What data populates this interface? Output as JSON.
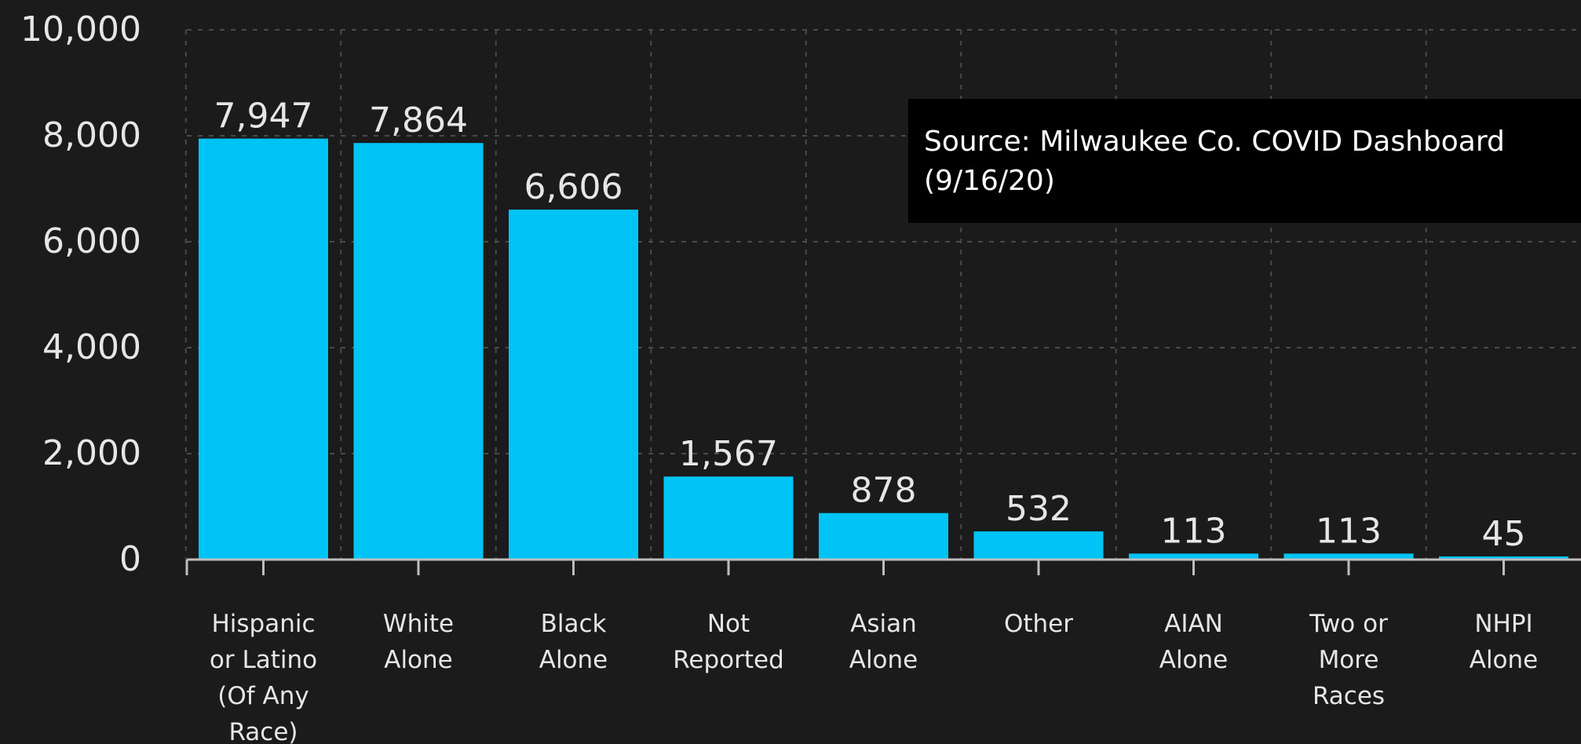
{
  "chart_data": {
    "type": "bar",
    "categories": [
      [
        "Hispanic",
        "or Latino",
        "(Of Any",
        "Race)"
      ],
      [
        "White",
        "Alone"
      ],
      [
        "Black",
        "Alone"
      ],
      [
        "Not",
        "Reported"
      ],
      [
        "Asian",
        "Alone"
      ],
      [
        "Other"
      ],
      [
        "AIAN",
        "Alone"
      ],
      [
        "Two or",
        "More",
        "Races"
      ],
      [
        "NHPI",
        "Alone"
      ]
    ],
    "values": [
      7947,
      7864,
      6606,
      1567,
      878,
      532,
      113,
      113,
      45
    ],
    "value_labels": [
      "7,947",
      "7,864",
      "6,606",
      "1,567",
      "878",
      "532",
      "113",
      "113",
      "45"
    ],
    "yticks": [
      0,
      2000,
      4000,
      6000,
      8000,
      10000
    ],
    "ytick_labels": [
      "0",
      "2,000",
      "4,000",
      "6,000",
      "8,000",
      "10,000"
    ],
    "ylim": [
      0,
      10000
    ],
    "grid": true,
    "colors": {
      "bar": "#00c4f5",
      "background": "#1b1b1b",
      "grid": "#4a4a4a",
      "axis": "#bdbdbd",
      "text": "#e6e6e6"
    }
  },
  "source_note": {
    "line1": "Source: Milwaukee Co. COVID Dashboard",
    "line2": "(9/16/20)"
  }
}
